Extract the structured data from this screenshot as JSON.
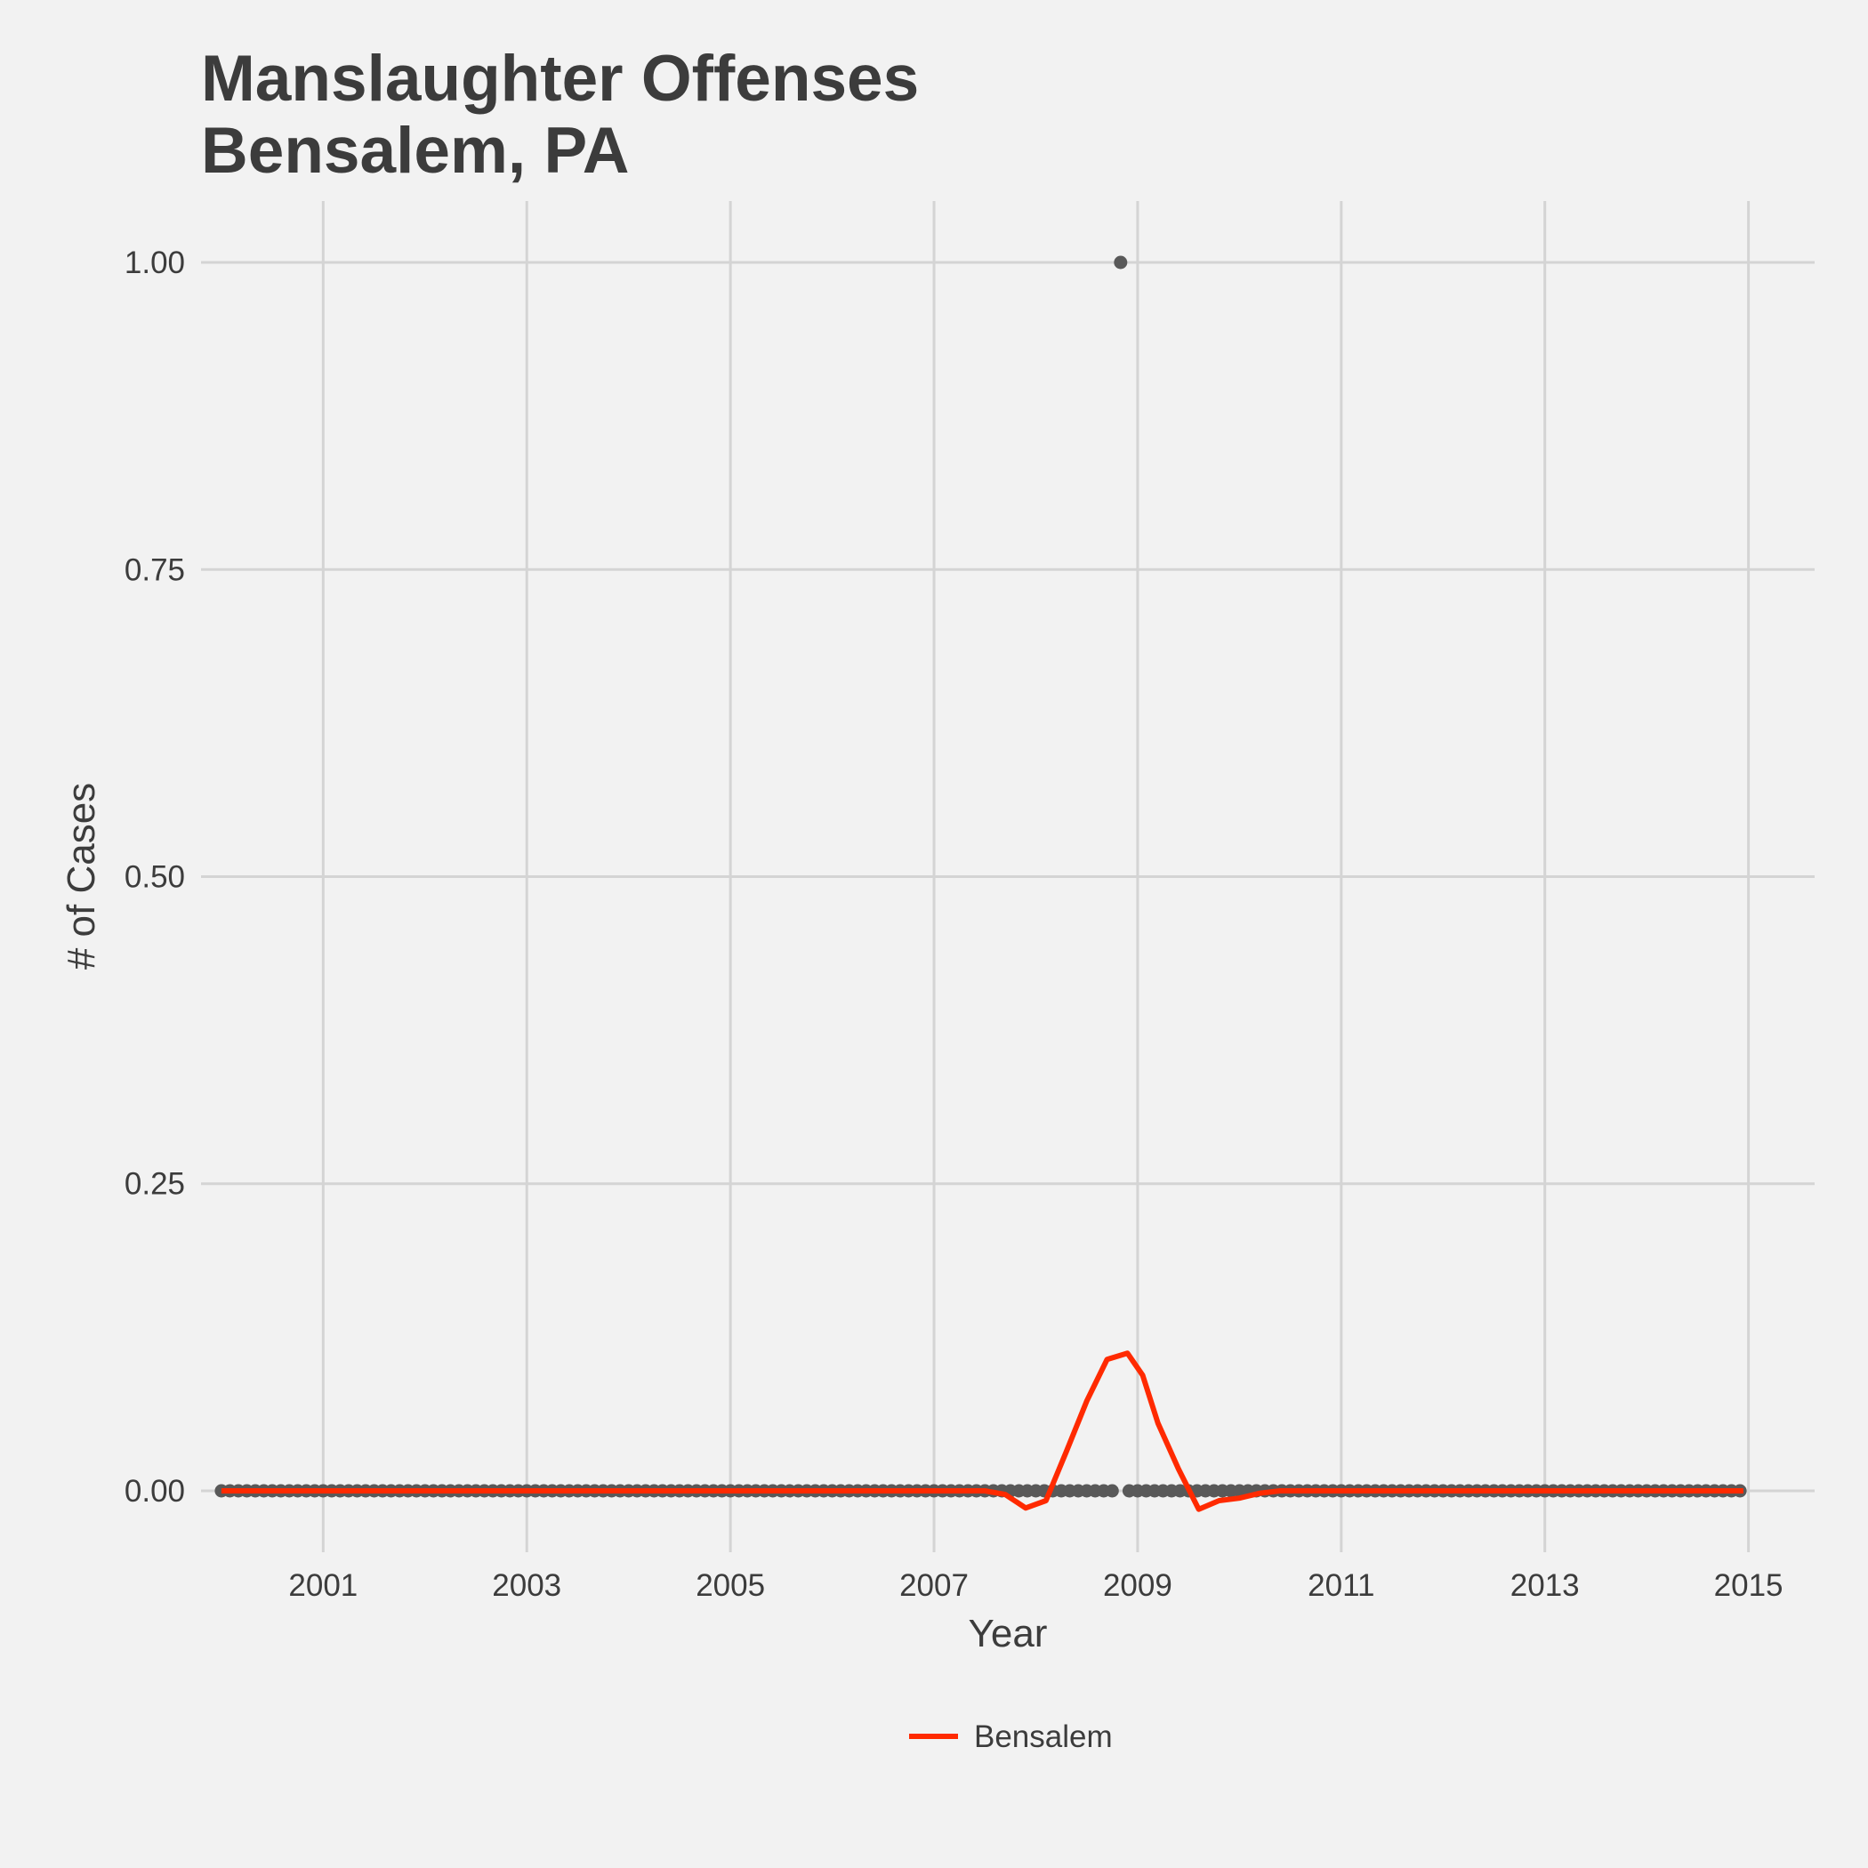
{
  "chart_data": {
    "type": "line",
    "title_lines": [
      "Manslaughter Offenses",
      "Bensalem, PA"
    ],
    "xlabel": "Year",
    "ylabel": "# of Cases",
    "x_ticks": [
      "2001",
      "2003",
      "2005",
      "2007",
      "2009",
      "2011",
      "2013",
      "2015"
    ],
    "y_ticks": [
      "0.00",
      "0.25",
      "0.50",
      "0.75",
      "1.00"
    ],
    "xlim": [
      1999.8,
      2015.65
    ],
    "ylim": [
      -0.05,
      1.05
    ],
    "grid": true,
    "legend_position": "bottom",
    "legend": [
      {
        "label": "Bensalem",
        "color": "#ff2a00"
      }
    ],
    "points": {
      "color": "#595959",
      "start": 2000.0,
      "step_years": 0.083333,
      "count": 180,
      "nonzero": [
        {
          "x": 2008.83,
          "y": 1
        }
      ]
    },
    "series": [
      {
        "name": "Bensalem",
        "color": "#ff2a00",
        "x": [
          2000.0,
          2007.5,
          2007.7,
          2007.9,
          2008.1,
          2008.3,
          2008.5,
          2008.7,
          2008.9,
          2009.05,
          2009.2,
          2009.4,
          2009.6,
          2009.8,
          2010.0,
          2010.2,
          2010.4,
          2014.95
        ],
        "y": [
          0,
          0,
          -0.003,
          -0.014,
          -0.008,
          0.032,
          0.073,
          0.107,
          0.112,
          0.094,
          0.055,
          0.018,
          -0.015,
          -0.008,
          -0.006,
          -0.002,
          0,
          0
        ]
      }
    ]
  }
}
